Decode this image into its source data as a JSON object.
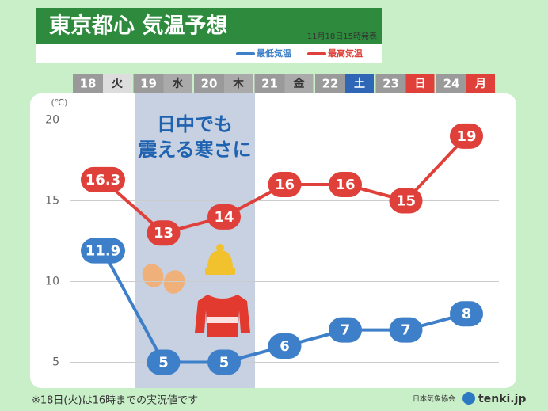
{
  "chart_data": {
    "type": "line",
    "title": "東京都心 気温予想",
    "issued": "11月18日15時発表",
    "y_unit": "(℃)",
    "categories": [
      "18",
      "19",
      "20",
      "21",
      "22",
      "23",
      "24"
    ],
    "weekdays": [
      "火",
      "水",
      "木",
      "金",
      "土",
      "日",
      "月"
    ],
    "series": [
      {
        "name": "最低気温",
        "color": "#3d7fc8",
        "values": [
          11.9,
          5,
          5,
          6,
          7,
          7,
          8
        ]
      },
      {
        "name": "最高気温",
        "color": "#e0403a",
        "values": [
          16.3,
          13,
          14,
          16,
          16,
          15,
          19
        ]
      }
    ],
    "ylim": [
      3.6,
      21.1
    ],
    "yticks": [
      5,
      10,
      15,
      20
    ],
    "grid": true,
    "annotation": [
      "日中でも",
      "震える寒さに"
    ],
    "footnote": "※18日(火)は16時までの実況値です",
    "source": "日本気象協会",
    "brand": "tenki.jp"
  }
}
